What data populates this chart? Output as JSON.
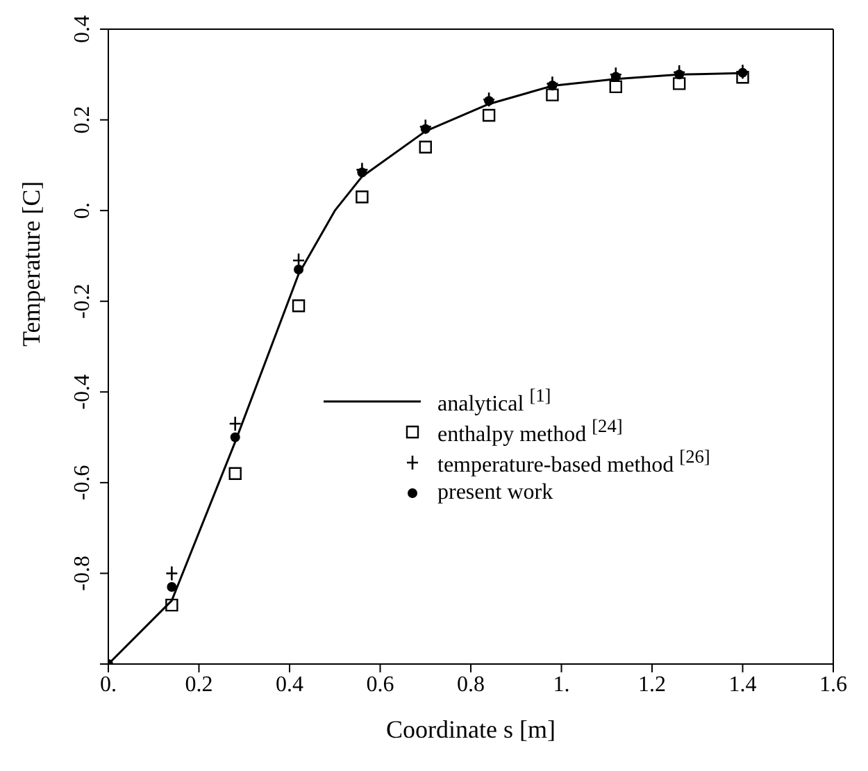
{
  "chart_data": {
    "type": "line",
    "xlabel": "Coordinate s [m]",
    "ylabel": "Temperature [C]",
    "series": [
      {
        "name": "analytical $^{[1]}$",
        "color": "#000000",
        "marker": "none",
        "line_style": "solid",
        "x": [
          0,
          0.14,
          0.28,
          0.42,
          0.5,
          0.56,
          0.7,
          0.84,
          0.98,
          1.12,
          1.26,
          1.4
        ],
        "values": [
          -1,
          -0.86,
          -0.51,
          -0.14,
          0,
          0.075,
          0.175,
          0.235,
          0.275,
          0.29,
          0.3,
          0.303
        ]
      },
      {
        "name": "enthalpy method $^{[24]}$",
        "type": "scatter",
        "color": "#000000",
        "marker": "square",
        "x": [
          0.14,
          0.28,
          0.42,
          0.56,
          0.7,
          0.84,
          0.98,
          1.12,
          1.26,
          1.4
        ],
        "values": [
          -0.87,
          -0.58,
          -0.21,
          0.03,
          0.14,
          0.21,
          0.255,
          0.273,
          0.28,
          0.294
        ]
      },
      {
        "name": "temperature-based method $^{[26]}$",
        "type": "scatter",
        "color": "#000000",
        "marker": "cross",
        "x": [
          0.14,
          0.28,
          0.42,
          0.56,
          0.7,
          0.84,
          0.98,
          1.12,
          1.26,
          1.4
        ],
        "values": [
          -0.8,
          -0.47,
          -0.11,
          0.09,
          0.185,
          0.245,
          0.28,
          0.3,
          0.305,
          0.306
        ]
      },
      {
        "name": "present work",
        "type": "scatter",
        "color": "#000000",
        "marker": "circle",
        "x": [
          0,
          0.14,
          0.28,
          0.42,
          0.56,
          0.7,
          0.84,
          0.98,
          1.12,
          1.26,
          1.4
        ],
        "values": [
          -1,
          -0.83,
          -0.5,
          -0.13,
          0.084,
          0.18,
          0.242,
          0.276,
          0.295,
          0.3,
          0.304
        ]
      }
    ],
    "xlim": [
      0,
      1.6
    ],
    "xticks": [
      {
        "value": 0,
        "label": "0."
      },
      0.2,
      0.4,
      0.6,
      0.8,
      {
        "value": 1,
        "label": "1."
      },
      1.2,
      1.4,
      1.6
    ],
    "ylim": [
      -1,
      0.4
    ],
    "yticks": [
      {
        "value": -1,
        "label": null
      },
      -0.8,
      -0.6,
      -0.4,
      -0.2,
      {
        "value": 0,
        "label": "0."
      },
      0.2,
      0.4
    ],
    "grid": false,
    "legend": "right"
  }
}
